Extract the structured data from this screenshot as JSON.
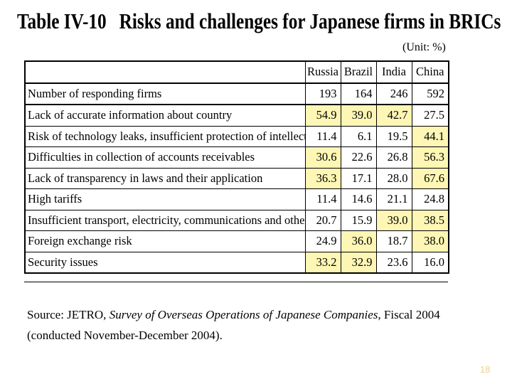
{
  "title": {
    "number": "Table IV-10",
    "text": "Risks and challenges for Japanese firms in BRICs"
  },
  "unit_note": "(Unit: %)",
  "table": {
    "columns": [
      "Russia",
      "Brazil",
      "India",
      "China"
    ],
    "rows": [
      {
        "label": "Number of responding firms",
        "values": [
          "193",
          "164",
          "246",
          "592"
        ],
        "highlight": [
          false,
          false,
          false,
          false
        ]
      },
      {
        "label": "Lack of accurate information about country",
        "values": [
          "54.9",
          "39.0",
          "42.7",
          "27.5"
        ],
        "highlight": [
          true,
          true,
          true,
          false
        ]
      },
      {
        "label": "Risk of technology leaks, insufficient protection of intellectual p",
        "values": [
          "11.4",
          "6.1",
          "19.5",
          "44.1"
        ],
        "highlight": [
          false,
          false,
          false,
          true
        ]
      },
      {
        "label": "Difficulties in collection of accounts receivables",
        "values": [
          "30.6",
          "22.6",
          "26.8",
          "56.3"
        ],
        "highlight": [
          true,
          false,
          false,
          true
        ]
      },
      {
        "label": "Lack of transparency in laws and their application",
        "values": [
          "36.3",
          "17.1",
          "28.0",
          "67.6"
        ],
        "highlight": [
          true,
          false,
          false,
          true
        ]
      },
      {
        "label": "High tariffs",
        "values": [
          "11.4",
          "14.6",
          "21.1",
          "24.8"
        ],
        "highlight": [
          false,
          false,
          false,
          false
        ]
      },
      {
        "label": "Insufficient transport, electricity, communications and other inf",
        "values": [
          "20.7",
          "15.9",
          "39.0",
          "38.5"
        ],
        "highlight": [
          false,
          false,
          true,
          true
        ]
      },
      {
        "label": "Foreign exchange risk",
        "values": [
          "24.9",
          "36.0",
          "18.7",
          "38.0"
        ],
        "highlight": [
          false,
          true,
          false,
          true
        ]
      },
      {
        "label": "Security issues",
        "values": [
          "33.2",
          "32.9",
          "23.6",
          "16.0"
        ],
        "highlight": [
          true,
          true,
          false,
          false
        ]
      }
    ],
    "highlight_color": "#fdf6b4"
  },
  "source": {
    "prefix": "Source: JETRO, ",
    "survey": "Survey of Overseas Operations of Japanese Companies",
    "suffix": ", Fiscal 2004",
    "line2": "(conducted November-December 2004)."
  },
  "page_number": "18"
}
